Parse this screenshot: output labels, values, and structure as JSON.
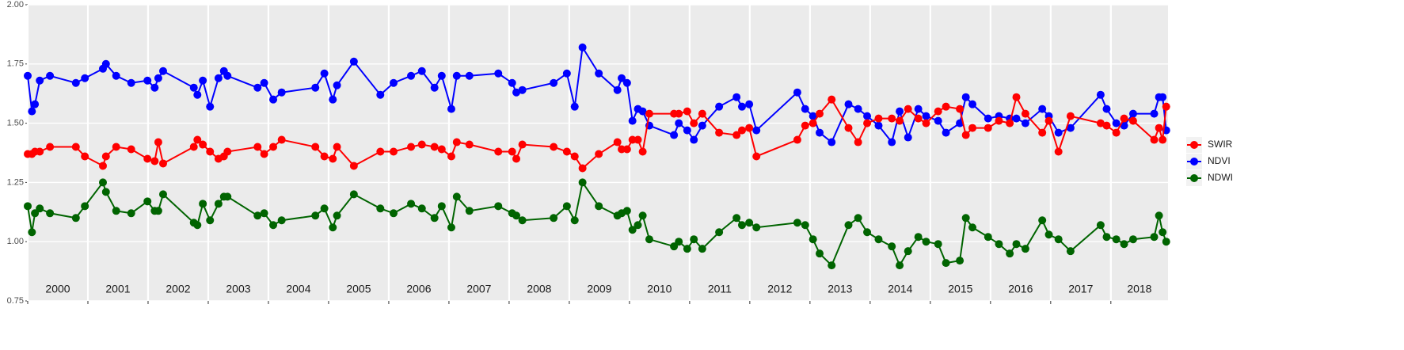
{
  "chart_data": {
    "type": "line",
    "x": [
      2000.0,
      2000.07,
      2000.12,
      2000.2,
      2000.37,
      2000.8,
      2000.95,
      2001.25,
      2001.3,
      2001.47,
      2001.72,
      2001.99,
      2002.11,
      2002.17,
      2002.25,
      2002.76,
      2002.82,
      2002.91,
      2003.03,
      2003.17,
      2003.26,
      2003.32,
      2003.82,
      2003.93,
      2004.08,
      2004.22,
      2004.78,
      2004.93,
      2005.07,
      2005.14,
      2005.42,
      2005.86,
      2006.08,
      2006.37,
      2006.55,
      2006.76,
      2006.88,
      2007.04,
      2007.13,
      2007.34,
      2007.82,
      2008.05,
      2008.12,
      2008.22,
      2008.74,
      2008.96,
      2009.09,
      2009.22,
      2009.49,
      2009.8,
      2009.87,
      2009.96,
      2010.05,
      2010.14,
      2010.22,
      2010.33,
      2010.74,
      2010.82,
      2010.96,
      2011.07,
      2011.21,
      2011.49,
      2011.78,
      2011.87,
      2011.99,
      2012.11,
      2012.79,
      2012.92,
      2013.05,
      2013.16,
      2013.36,
      2013.64,
      2013.8,
      2013.95,
      2014.14,
      2014.36,
      2014.49,
      2014.63,
      2014.8,
      2014.93,
      2015.13,
      2015.26,
      2015.49,
      2015.59,
      2015.7,
      2015.96,
      2016.14,
      2016.32,
      2016.43,
      2016.58,
      2016.86,
      2016.97,
      2017.13,
      2017.33,
      2017.83,
      2017.93,
      2018.09,
      2018.22,
      2018.37,
      2018.72,
      2018.8,
      2018.86,
      2018.92
    ],
    "series": [
      {
        "name": "SWIR",
        "color": "#ff0000",
        "values": [
          1.37,
          1.37,
          1.38,
          1.38,
          1.4,
          1.4,
          1.36,
          1.32,
          1.36,
          1.4,
          1.39,
          1.35,
          1.34,
          1.42,
          1.33,
          1.4,
          1.43,
          1.41,
          1.38,
          1.35,
          1.36,
          1.38,
          1.4,
          1.37,
          1.4,
          1.43,
          1.4,
          1.36,
          1.35,
          1.4,
          1.32,
          1.38,
          1.38,
          1.4,
          1.41,
          1.4,
          1.39,
          1.36,
          1.42,
          1.41,
          1.38,
          1.38,
          1.35,
          1.41,
          1.4,
          1.38,
          1.36,
          1.31,
          1.37,
          1.42,
          1.39,
          1.39,
          1.43,
          1.43,
          1.38,
          1.54,
          1.54,
          1.54,
          1.55,
          1.5,
          1.54,
          1.46,
          1.45,
          1.47,
          1.48,
          1.36,
          1.43,
          1.49,
          1.5,
          1.54,
          1.6,
          1.48,
          1.42,
          1.5,
          1.52,
          1.52,
          1.51,
          1.56,
          1.52,
          1.5,
          1.55,
          1.57,
          1.56,
          1.45,
          1.48,
          1.48,
          1.51,
          1.5,
          1.61,
          1.54,
          1.46,
          1.51,
          1.38,
          1.53,
          1.5,
          1.49,
          1.46,
          1.52,
          1.51,
          1.43,
          1.48,
          1.43,
          1.57
        ]
      },
      {
        "name": "NDVI",
        "color": "#0000ff",
        "values": [
          1.7,
          1.55,
          1.58,
          1.68,
          1.7,
          1.67,
          1.69,
          1.73,
          1.75,
          1.7,
          1.67,
          1.68,
          1.65,
          1.69,
          1.72,
          1.65,
          1.62,
          1.68,
          1.57,
          1.69,
          1.72,
          1.7,
          1.65,
          1.67,
          1.6,
          1.63,
          1.65,
          1.71,
          1.6,
          1.66,
          1.76,
          1.62,
          1.67,
          1.7,
          1.72,
          1.65,
          1.7,
          1.56,
          1.7,
          1.7,
          1.71,
          1.67,
          1.63,
          1.64,
          1.67,
          1.71,
          1.57,
          1.82,
          1.71,
          1.64,
          1.69,
          1.67,
          1.51,
          1.56,
          1.55,
          1.49,
          1.45,
          1.5,
          1.47,
          1.43,
          1.49,
          1.57,
          1.61,
          1.57,
          1.58,
          1.47,
          1.63,
          1.56,
          1.53,
          1.46,
          1.42,
          1.58,
          1.56,
          1.53,
          1.49,
          1.42,
          1.55,
          1.44,
          1.56,
          1.53,
          1.51,
          1.46,
          1.5,
          1.61,
          1.58,
          1.52,
          1.53,
          1.52,
          1.52,
          1.5,
          1.56,
          1.53,
          1.46,
          1.48,
          1.62,
          1.56,
          1.5,
          1.49,
          1.54,
          1.54,
          1.61,
          1.61,
          1.47
        ]
      },
      {
        "name": "NDWI",
        "color": "#006400",
        "values": [
          1.15,
          1.04,
          1.12,
          1.14,
          1.12,
          1.1,
          1.15,
          1.25,
          1.21,
          1.13,
          1.12,
          1.17,
          1.13,
          1.13,
          1.2,
          1.08,
          1.07,
          1.16,
          1.09,
          1.16,
          1.19,
          1.19,
          1.11,
          1.12,
          1.07,
          1.09,
          1.11,
          1.14,
          1.06,
          1.11,
          1.2,
          1.14,
          1.12,
          1.16,
          1.14,
          1.1,
          1.15,
          1.06,
          1.19,
          1.13,
          1.15,
          1.12,
          1.11,
          1.09,
          1.1,
          1.15,
          1.09,
          1.25,
          1.15,
          1.11,
          1.12,
          1.13,
          1.05,
          1.07,
          1.11,
          1.01,
          0.98,
          1.0,
          0.97,
          1.01,
          0.97,
          1.04,
          1.1,
          1.07,
          1.08,
          1.06,
          1.08,
          1.07,
          1.01,
          0.95,
          0.9,
          1.07,
          1.1,
          1.04,
          1.01,
          0.98,
          0.9,
          0.96,
          1.02,
          1.0,
          0.99,
          0.91,
          0.92,
          1.1,
          1.06,
          1.02,
          0.99,
          0.95,
          0.99,
          0.97,
          1.09,
          1.03,
          1.01,
          0.96,
          1.07,
          1.02,
          1.01,
          0.99,
          1.01,
          1.02,
          1.11,
          1.04,
          1.0
        ]
      }
    ],
    "xlim": [
      2000,
      2018.95
    ],
    "xticks": [
      2000,
      2001,
      2002,
      2003,
      2004,
      2005,
      2006,
      2007,
      2008,
      2009,
      2010,
      2011,
      2012,
      2013,
      2014,
      2015,
      2016,
      2017,
      2018
    ],
    "ylim": [
      0.75,
      2.0
    ],
    "yticks": [
      {
        "value": 0.75,
        "label": "0.75"
      },
      {
        "value": 1.0,
        "label": "1.00"
      },
      {
        "value": 1.25,
        "label": "1.25"
      },
      {
        "value": 1.5,
        "label": "1.50"
      },
      {
        "value": 1.75,
        "label": "1.75"
      },
      {
        "value": 2.0,
        "label": "2.00"
      }
    ],
    "grid": true,
    "legend": "right"
  }
}
